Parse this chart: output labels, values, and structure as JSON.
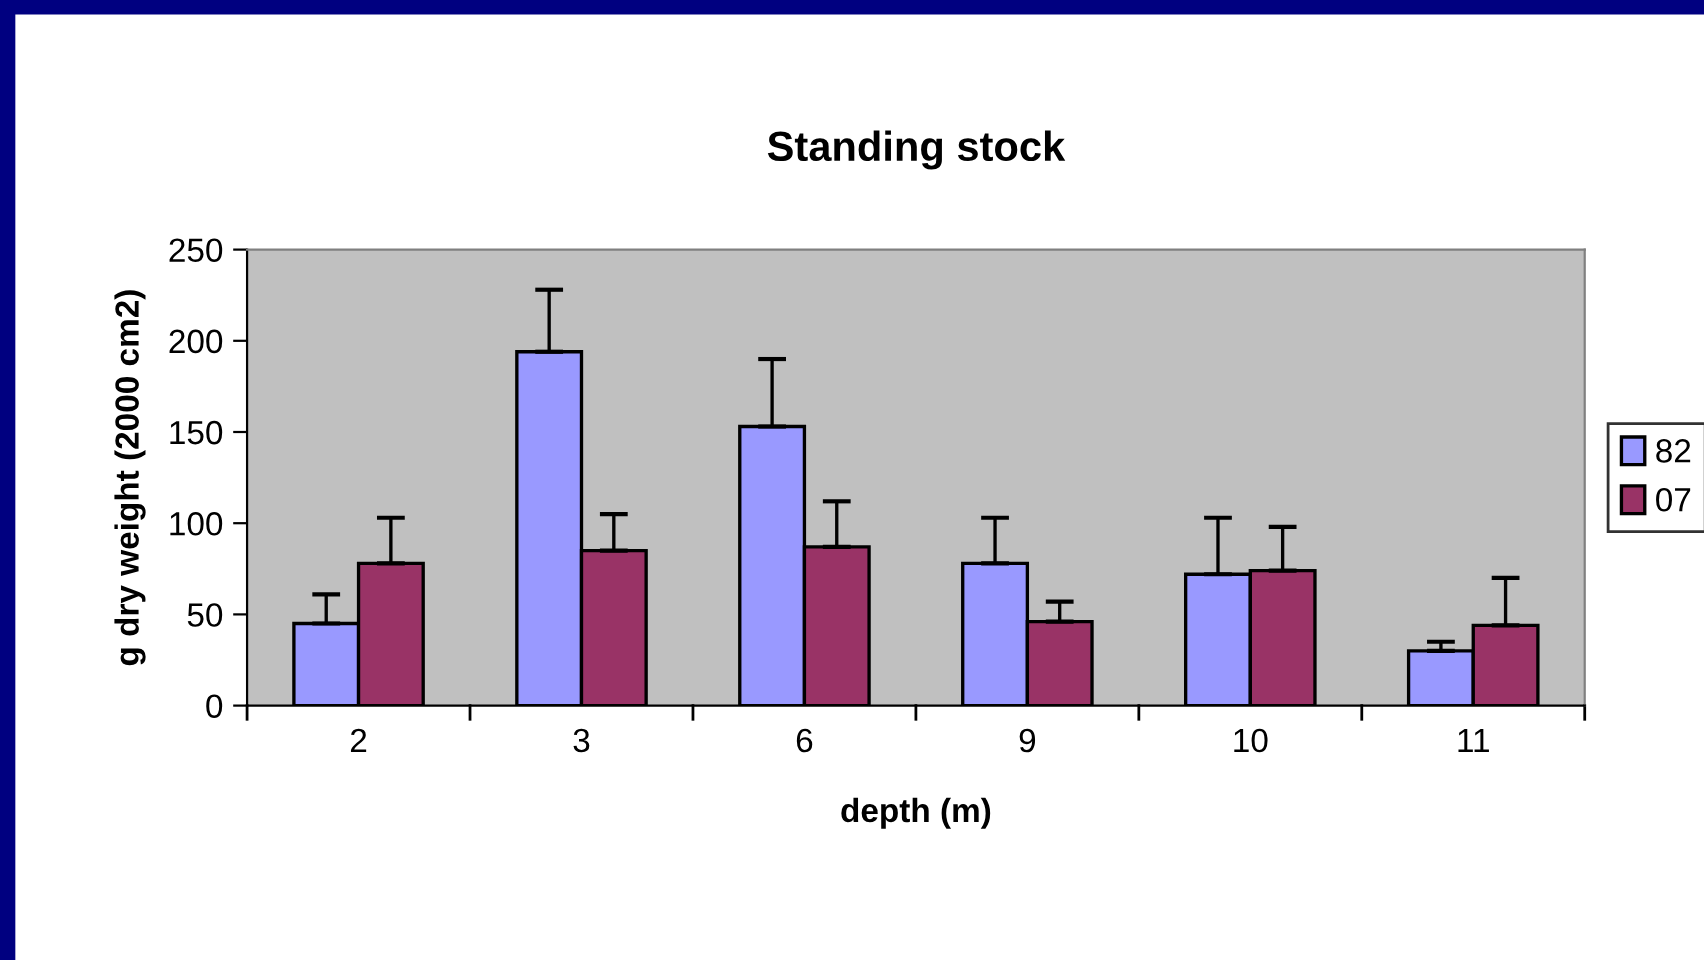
{
  "chart_data": {
    "type": "bar",
    "title": "Standing stock",
    "xlabel": "depth (m)",
    "ylabel": "g dry weight (2000 cm2)",
    "categories": [
      "2",
      "3",
      "6",
      "9",
      "10",
      "11"
    ],
    "series": [
      {
        "name": "82",
        "color": "#9999ff",
        "values": [
          45,
          194,
          153,
          78,
          72,
          30
        ],
        "errors": [
          [
            45,
            61
          ],
          [
            194,
            228
          ],
          [
            153,
            190
          ],
          [
            78,
            103
          ],
          [
            72,
            103
          ],
          [
            30,
            35
          ]
        ]
      },
      {
        "name": "07",
        "color": "#993366",
        "values": [
          78,
          85,
          87,
          46,
          74,
          44
        ],
        "errors": [
          [
            78,
            103
          ],
          [
            85,
            105
          ],
          [
            87,
            112
          ],
          [
            46,
            57
          ],
          [
            74,
            98
          ],
          [
            44,
            70
          ]
        ]
      }
    ],
    "ylim": [
      0,
      250
    ],
    "yticks": [
      0,
      50,
      100,
      150,
      200,
      250
    ],
    "grid": false,
    "legend": "right"
  }
}
